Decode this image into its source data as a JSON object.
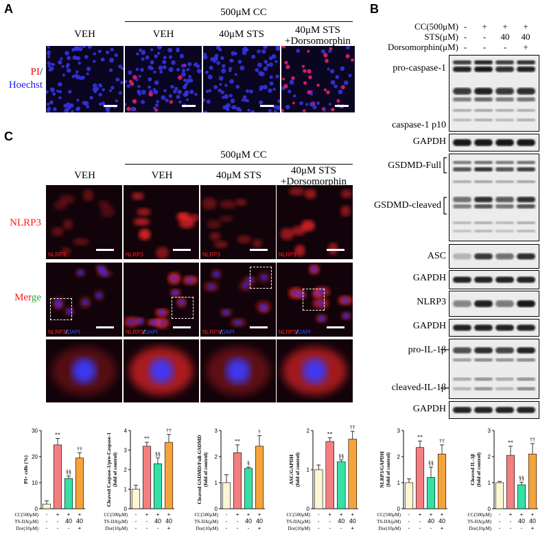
{
  "panel_a": {
    "label": "A",
    "header_500cc": "500μM CC",
    "cols": [
      "VEH",
      "VEH",
      "40μM STS",
      "40μM STS\n+Dorsomorphin"
    ],
    "stain_pi": "PI",
    "stain_slash": "/",
    "stain_hoechst": "Hoechst"
  },
  "panel_b": {
    "label": "B",
    "conditions": [
      {
        "name": "CC(500μM)",
        "values": [
          "-",
          "+",
          "+",
          "+"
        ]
      },
      {
        "name": "STS(μM)",
        "values": [
          "-",
          "-",
          "40",
          "40"
        ]
      },
      {
        "name": "Dorsomorphin(μM)",
        "values": [
          "-",
          "-",
          "-",
          "+"
        ]
      }
    ],
    "blot_labels": [
      "pro-caspase-1",
      "caspase-1 p10",
      "GAPDH",
      "GSDMD-Full",
      "GSDMD-cleaved",
      "ASC",
      "GAPDH",
      "NLRP3",
      "GAPDH",
      "pro-IL-1β",
      "cleaved-IL-1β",
      "GAPDH"
    ]
  },
  "panel_c": {
    "label": "C",
    "header_500cc": "500μM CC",
    "cols": [
      "VEH",
      "VEH",
      "40μM STS",
      "40μM STS\n+Dorsomorphin"
    ],
    "row_nlrp3": "NLRP3",
    "row_merge_a": "Mer",
    "row_merge_b": "ge",
    "tag_nlrp3": "NLRP3",
    "tag_slash": "/",
    "tag_dapi": "DAPI"
  },
  "colors": {
    "veh": "#fdf6d4",
    "cc": "#f47f80",
    "sts": "#36e0a4",
    "dor": "#f7a33c",
    "pi_red": "#ff0000",
    "hoechst_blue": "#1a1aff",
    "merge_green": "#22aa22"
  },
  "chart_conditions": [
    {
      "name": "CC(500μM)",
      "values": [
        "-",
        "+",
        "+",
        "+"
      ]
    },
    {
      "name": "TS-IIA(μM)",
      "values": [
        "-",
        "-",
        "40",
        "40"
      ]
    },
    {
      "name": "Dor(10μM)",
      "values": [
        "-",
        "-",
        "-",
        "+"
      ]
    }
  ],
  "chart_data": [
    {
      "type": "bar",
      "ylabel": "PI+ cells (%)",
      "ylim": [
        0,
        30
      ],
      "yticks": [
        0,
        10,
        20,
        30
      ],
      "values": [
        1.8,
        24.5,
        11.6,
        19.5
      ],
      "errors": [
        1.2,
        2.5,
        1.0,
        2.0
      ],
      "annotations": [
        "",
        "**",
        "§§",
        "††"
      ]
    },
    {
      "type": "bar",
      "ylabel": "Cleaved Caspase-1/pro-Caspase-1\n(fold of control)",
      "ylim": [
        0,
        4
      ],
      "yticks": [
        0,
        1,
        2,
        3,
        4
      ],
      "values": [
        1.0,
        3.2,
        2.3,
        3.4
      ],
      "errors": [
        0.2,
        0.2,
        0.3,
        0.4
      ],
      "annotations": [
        "",
        "**",
        "§§",
        "††"
      ]
    },
    {
      "type": "bar",
      "ylabel": "Cleaved GSDMD/Full-GSDMD\n(fold of control)",
      "ylim": [
        0,
        3
      ],
      "yticks": [
        0,
        1,
        2,
        3
      ],
      "values": [
        1.0,
        2.15,
        1.55,
        2.4
      ],
      "errors": [
        0.3,
        0.3,
        0.05,
        0.4
      ],
      "annotations": [
        "",
        "**",
        "§",
        "†"
      ]
    },
    {
      "type": "bar",
      "ylabel": "ASC/GAPDH\n(fold of control)",
      "ylim": [
        0,
        2
      ],
      "yticks": [
        0,
        1,
        2
      ],
      "values": [
        1.0,
        1.72,
        1.2,
        1.78
      ],
      "errors": [
        0.12,
        0.1,
        0.05,
        0.2
      ],
      "annotations": [
        "",
        "**",
        "§§",
        "††"
      ]
    },
    {
      "type": "bar",
      "ylabel": "NLRP3/GAPDH\n(fold of control)",
      "ylim": [
        0,
        3
      ],
      "yticks": [
        0,
        1,
        2,
        3
      ],
      "values": [
        1.0,
        2.35,
        1.2,
        2.1
      ],
      "errors": [
        0.15,
        0.25,
        0.4,
        0.35
      ],
      "annotations": [
        "",
        "**",
        "§§",
        "††"
      ]
    },
    {
      "type": "bar",
      "ylabel": "Cleaved IL-1β\n(fold of control)",
      "ylim": [
        0,
        3
      ],
      "yticks": [
        0,
        1,
        2,
        3
      ],
      "values": [
        1.0,
        2.05,
        0.92,
        2.1
      ],
      "errors": [
        0.05,
        0.35,
        0.1,
        0.4
      ],
      "annotations": [
        "",
        "**",
        "§§",
        "††"
      ]
    }
  ]
}
